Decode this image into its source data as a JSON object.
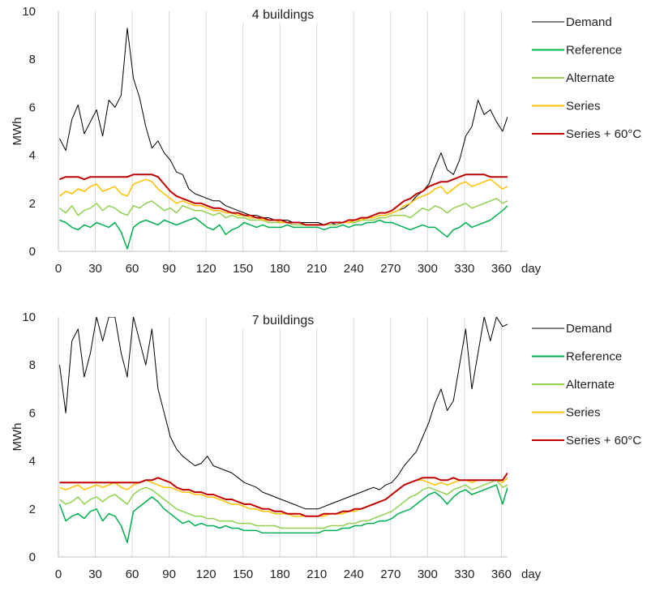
{
  "chart_data": [
    {
      "type": "line",
      "title": "4 buildings",
      "xlabel": "day",
      "ylabel": "MWh",
      "xlim": [
        0,
        365
      ],
      "ylim": [
        0,
        10
      ],
      "x_ticks": [
        0,
        30,
        60,
        90,
        120,
        150,
        180,
        210,
        240,
        270,
        300,
        330,
        360
      ],
      "y_ticks": [
        0,
        2,
        4,
        6,
        8,
        10
      ],
      "grid": "vertical",
      "legend": "right",
      "sample_step_days": 5,
      "series": [
        {
          "name": "Demand",
          "color": "#000000",
          "values": [
            4.7,
            4.2,
            5.5,
            6.1,
            4.9,
            5.4,
            5.9,
            4.8,
            6.3,
            6.0,
            6.5,
            9.3,
            7.2,
            6.4,
            5.2,
            4.3,
            4.6,
            4.1,
            3.8,
            3.3,
            3.2,
            2.6,
            2.4,
            2.3,
            2.2,
            2.1,
            2.1,
            1.9,
            1.8,
            1.7,
            1.6,
            1.5,
            1.5,
            1.4,
            1.4,
            1.3,
            1.3,
            1.3,
            1.2,
            1.2,
            1.2,
            1.2,
            1.2,
            1.1,
            1.2,
            1.1,
            1.2,
            1.2,
            1.3,
            1.3,
            1.4,
            1.4,
            1.5,
            1.5,
            1.6,
            1.7,
            1.8,
            2.0,
            2.3,
            2.5,
            2.8,
            3.5,
            4.1,
            3.4,
            3.2,
            3.8,
            4.8,
            5.2,
            6.3,
            5.7,
            5.9,
            5.4,
            5.0,
            5.6
          ]
        },
        {
          "name": "Reference",
          "color": "#00b050",
          "values": [
            1.3,
            1.2,
            1.0,
            0.9,
            1.1,
            1.0,
            1.2,
            1.1,
            1.0,
            1.2,
            0.8,
            0.1,
            1.0,
            1.2,
            1.3,
            1.2,
            1.1,
            1.3,
            1.2,
            1.1,
            1.2,
            1.3,
            1.4,
            1.2,
            1.0,
            0.9,
            1.1,
            0.7,
            0.9,
            1.0,
            1.2,
            1.1,
            1.0,
            1.1,
            1.0,
            1.0,
            1.0,
            1.1,
            1.0,
            1.0,
            1.0,
            1.0,
            1.0,
            0.9,
            1.0,
            1.0,
            1.1,
            1.0,
            1.1,
            1.1,
            1.2,
            1.2,
            1.3,
            1.2,
            1.2,
            1.1,
            1.0,
            0.9,
            1.0,
            1.1,
            1.0,
            1.0,
            0.8,
            0.6,
            0.9,
            1.0,
            1.2,
            1.0,
            1.1,
            1.2,
            1.3,
            1.5,
            1.7,
            1.9
          ]
        },
        {
          "name": "Alternate",
          "color": "#92d050",
          "values": [
            1.8,
            1.6,
            1.9,
            1.5,
            1.7,
            1.8,
            2.0,
            1.7,
            1.9,
            1.8,
            1.6,
            1.5,
            1.9,
            1.8,
            2.0,
            2.1,
            1.9,
            1.7,
            1.8,
            1.6,
            1.9,
            1.8,
            1.7,
            1.7,
            1.6,
            1.5,
            1.6,
            1.4,
            1.5,
            1.4,
            1.4,
            1.3,
            1.3,
            1.3,
            1.2,
            1.2,
            1.2,
            1.2,
            1.1,
            1.1,
            1.1,
            1.1,
            1.1,
            1.1,
            1.1,
            1.1,
            1.2,
            1.2,
            1.2,
            1.3,
            1.3,
            1.3,
            1.4,
            1.4,
            1.5,
            1.5,
            1.5,
            1.4,
            1.6,
            1.8,
            1.7,
            1.9,
            1.8,
            1.6,
            1.8,
            1.9,
            2.0,
            1.8,
            1.9,
            2.0,
            2.1,
            2.2,
            2.0,
            2.1
          ]
        },
        {
          "name": "Series",
          "color": "#ffc000",
          "values": [
            2.3,
            2.5,
            2.4,
            2.6,
            2.5,
            2.7,
            2.8,
            2.5,
            2.6,
            2.7,
            2.4,
            2.3,
            2.8,
            2.9,
            3.0,
            2.9,
            2.6,
            2.4,
            2.2,
            2.0,
            2.1,
            2.0,
            1.9,
            1.9,
            1.8,
            1.7,
            1.7,
            1.6,
            1.6,
            1.5,
            1.5,
            1.4,
            1.4,
            1.3,
            1.3,
            1.3,
            1.2,
            1.2,
            1.2,
            1.2,
            1.1,
            1.1,
            1.1,
            1.1,
            1.2,
            1.2,
            1.2,
            1.2,
            1.3,
            1.3,
            1.4,
            1.4,
            1.5,
            1.5,
            1.6,
            1.7,
            1.9,
            2.0,
            2.2,
            2.3,
            2.4,
            2.6,
            2.7,
            2.4,
            2.6,
            2.8,
            2.9,
            2.7,
            2.8,
            2.9,
            3.0,
            2.8,
            2.6,
            2.7
          ]
        },
        {
          "name": "Series + 60°C",
          "color": "#c00000",
          "values": [
            3.0,
            3.1,
            3.1,
            3.1,
            3.0,
            3.1,
            3.1,
            3.1,
            3.1,
            3.1,
            3.1,
            3.1,
            3.2,
            3.2,
            3.2,
            3.2,
            3.1,
            2.8,
            2.5,
            2.3,
            2.2,
            2.1,
            2.0,
            2.0,
            1.9,
            1.8,
            1.8,
            1.7,
            1.6,
            1.6,
            1.5,
            1.5,
            1.4,
            1.4,
            1.3,
            1.3,
            1.3,
            1.2,
            1.2,
            1.2,
            1.1,
            1.1,
            1.1,
            1.1,
            1.2,
            1.2,
            1.2,
            1.3,
            1.3,
            1.4,
            1.4,
            1.5,
            1.6,
            1.6,
            1.7,
            1.9,
            2.1,
            2.2,
            2.4,
            2.5,
            2.7,
            2.8,
            2.9,
            2.9,
            3.0,
            3.1,
            3.2,
            3.2,
            3.2,
            3.2,
            3.1,
            3.1,
            3.1,
            3.1
          ]
        }
      ]
    },
    {
      "type": "line",
      "title": "7 buildings",
      "xlabel": "day",
      "ylabel": "MWh",
      "xlim": [
        0,
        365
      ],
      "ylim": [
        0,
        10
      ],
      "x_ticks": [
        0,
        30,
        60,
        90,
        120,
        150,
        180,
        210,
        240,
        270,
        300,
        330,
        360
      ],
      "y_ticks": [
        0,
        2,
        4,
        6,
        8,
        10
      ],
      "grid": "vertical",
      "legend": "right",
      "sample_step_days": 5,
      "series": [
        {
          "name": "Demand",
          "color": "#000000",
          "values": [
            8.0,
            6.0,
            9.0,
            9.5,
            7.5,
            8.5,
            10,
            9.0,
            10,
            10,
            8.5,
            7.5,
            10,
            9.0,
            8.0,
            9.5,
            7.0,
            6.0,
            5.0,
            4.5,
            4.2,
            4.0,
            3.8,
            3.9,
            4.2,
            3.8,
            3.7,
            3.6,
            3.5,
            3.3,
            3.1,
            3.0,
            2.9,
            2.7,
            2.6,
            2.5,
            2.4,
            2.3,
            2.2,
            2.1,
            2.0,
            2.0,
            2.0,
            2.1,
            2.2,
            2.3,
            2.4,
            2.5,
            2.6,
            2.7,
            2.8,
            2.9,
            2.8,
            3.0,
            3.1,
            3.4,
            3.8,
            4.1,
            4.4,
            5.0,
            5.6,
            6.4,
            7.0,
            6.1,
            6.5,
            8.0,
            9.5,
            7.0,
            8.5,
            10,
            9.0,
            10,
            9.6,
            9.7
          ]
        },
        {
          "name": "Reference",
          "color": "#00b050",
          "values": [
            2.2,
            1.5,
            1.7,
            1.8,
            1.6,
            1.9,
            2.0,
            1.5,
            1.8,
            1.7,
            1.3,
            0.6,
            1.9,
            2.1,
            2.3,
            2.5,
            2.3,
            2.0,
            1.8,
            1.6,
            1.4,
            1.5,
            1.3,
            1.4,
            1.3,
            1.3,
            1.2,
            1.3,
            1.2,
            1.2,
            1.1,
            1.1,
            1.1,
            1.0,
            1.0,
            1.0,
            1.0,
            1.0,
            1.0,
            1.0,
            1.0,
            1.0,
            1.0,
            1.1,
            1.1,
            1.1,
            1.2,
            1.2,
            1.3,
            1.3,
            1.4,
            1.4,
            1.5,
            1.5,
            1.6,
            1.8,
            1.9,
            2.0,
            2.2,
            2.4,
            2.6,
            2.7,
            2.5,
            2.2,
            2.5,
            2.7,
            2.8,
            2.6,
            2.7,
            2.8,
            2.9,
            3.0,
            2.2,
            2.9
          ]
        },
        {
          "name": "Alternate",
          "color": "#92d050",
          "values": [
            2.4,
            2.2,
            2.3,
            2.5,
            2.2,
            2.4,
            2.5,
            2.3,
            2.5,
            2.6,
            2.4,
            2.2,
            2.6,
            2.8,
            2.9,
            2.8,
            2.6,
            2.4,
            2.2,
            2.0,
            1.9,
            1.8,
            1.7,
            1.7,
            1.6,
            1.6,
            1.5,
            1.5,
            1.5,
            1.4,
            1.4,
            1.4,
            1.3,
            1.3,
            1.3,
            1.3,
            1.2,
            1.2,
            1.2,
            1.2,
            1.2,
            1.2,
            1.2,
            1.2,
            1.3,
            1.3,
            1.3,
            1.4,
            1.4,
            1.5,
            1.5,
            1.6,
            1.7,
            1.8,
            1.9,
            2.1,
            2.3,
            2.5,
            2.6,
            2.8,
            2.9,
            2.8,
            2.7,
            2.6,
            2.8,
            2.9,
            3.0,
            2.8,
            2.9,
            3.0,
            3.1,
            3.2,
            2.9,
            3.0
          ]
        },
        {
          "name": "Series",
          "color": "#ffc000",
          "values": [
            2.9,
            2.8,
            2.9,
            3.0,
            2.8,
            2.9,
            3.0,
            2.9,
            3.0,
            3.1,
            2.9,
            2.8,
            3.0,
            3.1,
            3.2,
            3.1,
            3.0,
            2.9,
            2.9,
            2.8,
            2.7,
            2.7,
            2.6,
            2.6,
            2.5,
            2.5,
            2.4,
            2.3,
            2.2,
            2.2,
            2.1,
            2.0,
            2.0,
            1.9,
            1.9,
            1.8,
            1.8,
            1.8,
            1.7,
            1.7,
            1.7,
            1.7,
            1.7,
            1.7,
            1.8,
            1.8,
            1.8,
            1.9,
            1.9,
            2.0,
            2.1,
            2.2,
            2.3,
            2.4,
            2.6,
            2.8,
            3.0,
            3.1,
            3.2,
            3.2,
            3.1,
            3.0,
            3.1,
            3.0,
            3.1,
            3.2,
            3.2,
            3.1,
            3.2,
            3.2,
            3.2,
            3.2,
            3.1,
            3.3
          ]
        },
        {
          "name": "Series + 60°C",
          "color": "#c00000",
          "values": [
            3.1,
            3.1,
            3.1,
            3.1,
            3.1,
            3.1,
            3.1,
            3.1,
            3.1,
            3.1,
            3.1,
            3.1,
            3.1,
            3.1,
            3.2,
            3.2,
            3.3,
            3.2,
            3.1,
            2.9,
            2.8,
            2.8,
            2.7,
            2.7,
            2.6,
            2.6,
            2.5,
            2.4,
            2.4,
            2.3,
            2.2,
            2.2,
            2.1,
            2.0,
            2.0,
            1.9,
            1.9,
            1.8,
            1.8,
            1.8,
            1.7,
            1.7,
            1.7,
            1.8,
            1.8,
            1.8,
            1.9,
            1.9,
            2.0,
            2.0,
            2.1,
            2.2,
            2.3,
            2.4,
            2.6,
            2.8,
            3.0,
            3.1,
            3.2,
            3.3,
            3.3,
            3.3,
            3.2,
            3.2,
            3.3,
            3.2,
            3.2,
            3.2,
            3.2,
            3.2,
            3.2,
            3.2,
            3.2,
            3.5
          ]
        }
      ]
    }
  ]
}
